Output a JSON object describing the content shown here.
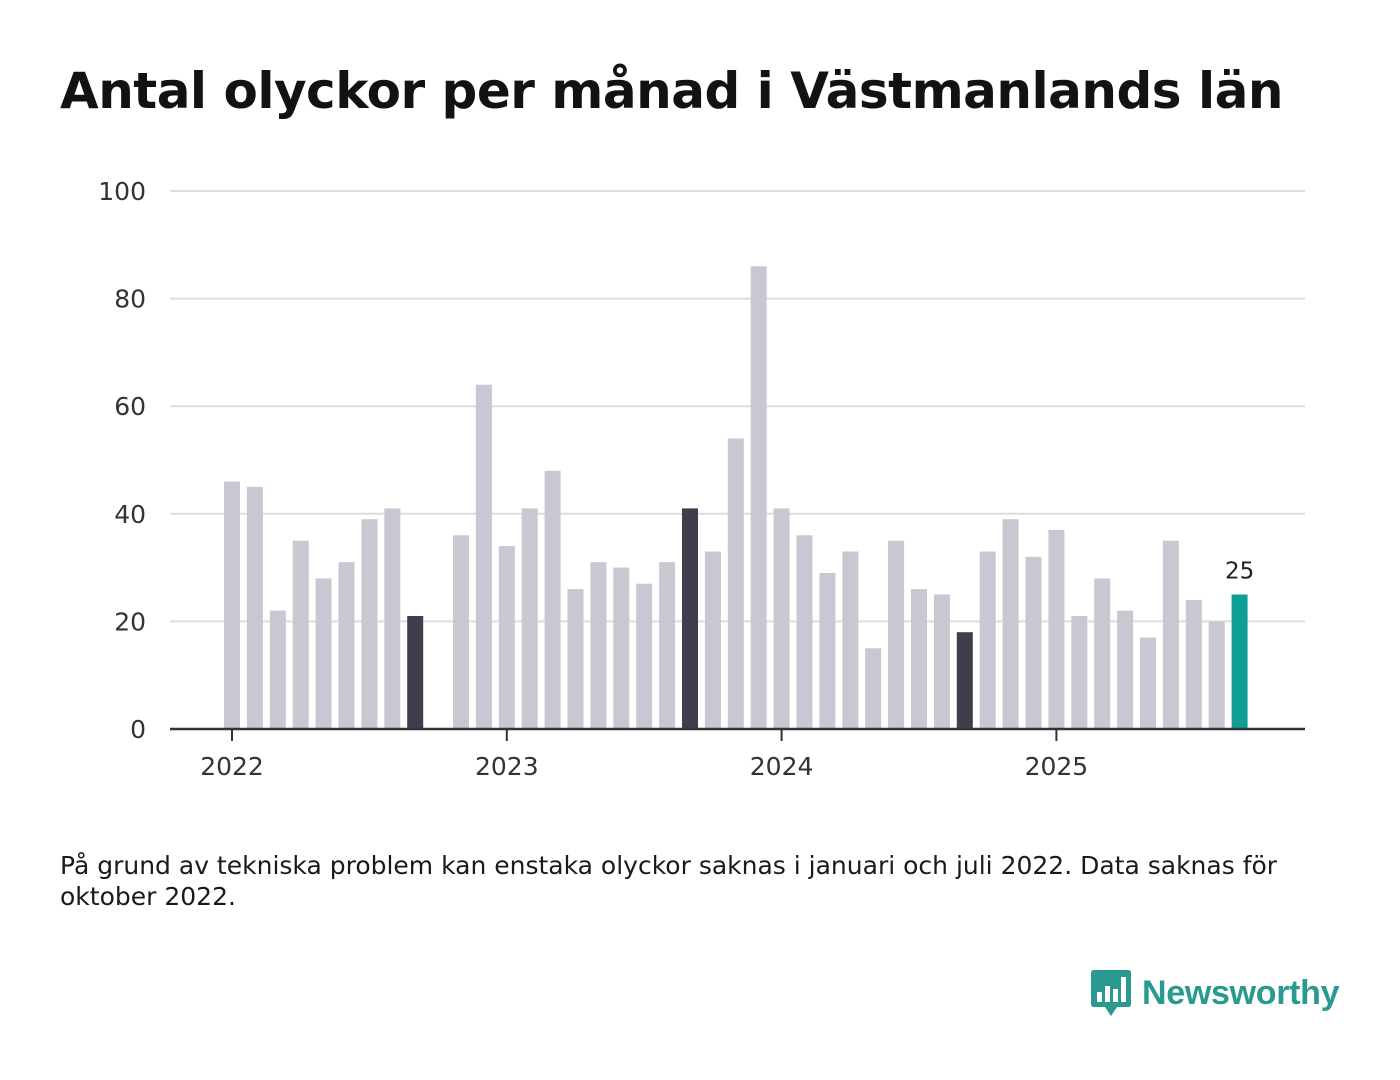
{
  "chart_data": {
    "type": "bar",
    "title": "Antal olyckor per månad i Västmanlands län",
    "xlabel": "",
    "ylabel": "",
    "ylim": [
      0,
      100
    ],
    "yticks": [
      0,
      20,
      40,
      60,
      80,
      100
    ],
    "year_labels": [
      {
        "label": "2022",
        "month_index": 0
      },
      {
        "label": "2023",
        "month_index": 12
      },
      {
        "label": "2024",
        "month_index": 24
      },
      {
        "label": "2025",
        "month_index": 36
      }
    ],
    "categories": [
      "2022-01",
      "2022-02",
      "2022-03",
      "2022-04",
      "2022-05",
      "2022-06",
      "2022-07",
      "2022-08",
      "2022-09",
      "2022-10",
      "2022-11",
      "2022-12",
      "2023-01",
      "2023-02",
      "2023-03",
      "2023-04",
      "2023-05",
      "2023-06",
      "2023-07",
      "2023-08",
      "2023-09",
      "2023-10",
      "2023-11",
      "2023-12",
      "2024-01",
      "2024-02",
      "2024-03",
      "2024-04",
      "2024-05",
      "2024-06",
      "2024-07",
      "2024-08",
      "2024-09",
      "2024-10",
      "2024-11",
      "2024-12",
      "2025-01",
      "2025-02",
      "2025-03",
      "2025-04",
      "2025-05",
      "2025-06",
      "2025-07",
      "2025-08",
      "2025-09"
    ],
    "values": [
      46,
      45,
      22,
      35,
      28,
      31,
      39,
      41,
      21,
      null,
      36,
      64,
      34,
      41,
      48,
      26,
      31,
      30,
      27,
      31,
      41,
      33,
      54,
      86,
      41,
      36,
      29,
      33,
      15,
      35,
      26,
      25,
      18,
      33,
      39,
      32,
      37,
      21,
      28,
      22,
      17,
      35,
      24,
      20,
      25
    ],
    "highlight_months": [
      "2022-09",
      "2023-09",
      "2024-09"
    ],
    "current_month": "2025-09",
    "data_labels": [
      {
        "category": "2025-09",
        "text": "25"
      }
    ]
  },
  "colors": {
    "bar_default": "#c8c7d2",
    "bar_highlight": "#3e3e4c",
    "bar_current": "#0f9e94",
    "grid": "#dddddd",
    "axis": "#333333",
    "brand": "#2a9a90"
  },
  "note": "På grund av tekniska problem kan enstaka olyckor saknas i januari och juli 2022. Data saknas för oktober 2022.",
  "logo": {
    "text": "Newsworthy",
    "icon": "bar-chart-speech-bubble-icon"
  }
}
